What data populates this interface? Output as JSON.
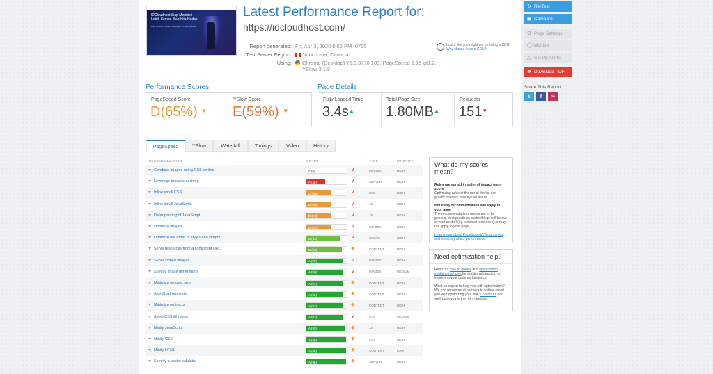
{
  "report": {
    "title": "Latest Performance Report for:",
    "url": "https://idcloudhost.com/",
    "thumbnail": {
      "headline": "IDCloudhost Siap Membeli Lebih Semua Bisa Kita Hadapi",
      "sub": "Web Hosting Terbaik Dukungan NVME Customer"
    },
    "meta": {
      "generated_label": "Report generated:",
      "generated_value": "Fri, Apr 3, 2020 9:56 PM -0700",
      "region_label": "Test Server Region:",
      "region_value": "Vancouver, Canada",
      "using_label": "Using:",
      "using_value_1": "Chrome (Desktop) 75.0.3770.100, PageSpeed 1.15-gt1.2,",
      "using_value_2": "YSlow 3.1.8"
    },
    "cdn": {
      "text": "Looks like you might not be using a CDN",
      "link": "Why should I use a CDN?"
    }
  },
  "scores": {
    "title": "Performance Scores",
    "pagespeed_label": "PageSpeed Score",
    "pagespeed_grade": "D",
    "pagespeed_pct": "(65%)",
    "yslow_label": "YSlow Score",
    "yslow_grade": "E",
    "yslow_pct": "(59%)"
  },
  "details": {
    "title": "Page Details",
    "loaded_label": "Fully Loaded Time",
    "loaded_value": "3.4s",
    "size_label": "Total Page Size",
    "size_value": "1.80MB",
    "requests_label": "Requests",
    "requests_value": "151"
  },
  "tabs": [
    "PageSpeed",
    "YSlow",
    "Waterfall",
    "Timings",
    "Video",
    "History"
  ],
  "table_headers": {
    "recommendation": "RECOMMENDATION",
    "grade": "GRADE",
    "type": "TYPE",
    "priority": "PRIORITY"
  },
  "recommendations": [
    {
      "name": "Combine images using CSS sprites",
      "grade": "F (0)",
      "score": 0,
      "ind": "down",
      "type": "IMAGES",
      "priority": "HIGH"
    },
    {
      "name": "Leverage browser caching",
      "grade": "F (46)",
      "score": 46,
      "ind": "down",
      "type": "SERVER",
      "priority": "HIGH"
    },
    {
      "name": "Inline small CSS",
      "grade": "D (60)",
      "score": 60,
      "ind": "down",
      "type": "CSS",
      "priority": "HIGH"
    },
    {
      "name": "Inline small JavaScript",
      "grade": "D (60)",
      "score": 60,
      "ind": "down",
      "type": "JS",
      "priority": "HIGH"
    },
    {
      "name": "Defer parsing of JavaScript",
      "grade": "D (60)",
      "score": 60,
      "ind": "down",
      "type": "JS",
      "priority": "HIGH"
    },
    {
      "name": "Optimize images",
      "grade": "D (62)",
      "score": 62,
      "ind": "down",
      "type": "IMAGES",
      "priority": "HIGH"
    },
    {
      "name": "Optimize the order of styles and scripts",
      "grade": "B (83)",
      "score": 83,
      "ind": "down",
      "type": "CSS/JS",
      "priority": "HIGH"
    },
    {
      "name": "Serve resources from a consistent URL",
      "grade": "B (88)",
      "score": 88,
      "ind": "diamond",
      "type": "CONTENT",
      "priority": "HIGH"
    },
    {
      "name": "Serve scaled images",
      "grade": "A (90)",
      "score": 90,
      "ind": "up",
      "type": "IMAGES",
      "priority": "HIGH"
    },
    {
      "name": "Specify image dimensions",
      "grade": "A (90)",
      "score": 90,
      "ind": "down",
      "type": "IMAGES",
      "priority": "MEDIUM"
    },
    {
      "name": "Minimize request size",
      "grade": "A (91)",
      "score": 91,
      "ind": "diamond",
      "type": "CONTENT",
      "priority": "HIGH"
    },
    {
      "name": "Avoid bad requests",
      "grade": "A (92)",
      "score": 92,
      "ind": "diamond",
      "type": "CONTENT",
      "priority": "HIGH"
    },
    {
      "name": "Minimize redirects",
      "grade": "A (92)",
      "score": 92,
      "ind": "diamond",
      "type": "CONTENT",
      "priority": "HIGH"
    },
    {
      "name": "Avoid CSS @import",
      "grade": "A (92)",
      "score": 92,
      "ind": "down",
      "type": "CSS",
      "priority": "MEDIUM"
    },
    {
      "name": "Minify JavaScript",
      "grade": "A (95)",
      "score": 95,
      "ind": "diamond",
      "type": "JS",
      "priority": "HIGH"
    },
    {
      "name": "Minify CSS",
      "grade": "A (98)",
      "score": 98,
      "ind": "diamond",
      "type": "CSS",
      "priority": "HIGH"
    },
    {
      "name": "Minify HTML",
      "grade": "A (98)",
      "score": 98,
      "ind": "diamond",
      "type": "CONTENT",
      "priority": "LOW"
    },
    {
      "name": "Specify a cache validator",
      "grade": "A (98)",
      "score": 98,
      "ind": "diamond",
      "type": "SERVER",
      "priority": "HIGH"
    }
  ],
  "sidebox1": {
    "title": "What do my scores mean?",
    "b1": "Rules are sorted in order of impact upon score",
    "p1": "Optimizing rules at the top of the list can greatly improve your overall score.",
    "b2": "Not every recommendation will apply to your page",
    "p2": "The recommendations are meant to be generic, best practices; some things will be out of your control (eg. external resources) or may not apply to your page.",
    "link": "Learn more about PageSpeed/YSlow scores and how they affect performance."
  },
  "sidebox2": {
    "title": "Need optimization help?",
    "p1a": "Read our ",
    "l1": "how-to guides",
    "p1b": " and ",
    "l2": "optimization explained articles",
    "p1c": " for additional direction on improving your page performance.",
    "p2a": "Want an expert to help you with optimization? We can recommend partners to further assist you with optimizing your site. ",
    "l3": "Contact us",
    "p2b": " and we'll point you in the right direction."
  },
  "actions": {
    "retest": "Re-Test",
    "compare": "Compare",
    "page_settings": "Page Settings",
    "monitor": "Monitor",
    "alerts": "Set Up Alerts",
    "pdf": "Download PDF",
    "share": "Share This Report"
  },
  "colors": {
    "accent": "#2b82c9",
    "grade_f": "#d9342b",
    "grade_d": "#e69b3a",
    "grade_b": "#6abf40",
    "grade_a": "#27a534"
  }
}
